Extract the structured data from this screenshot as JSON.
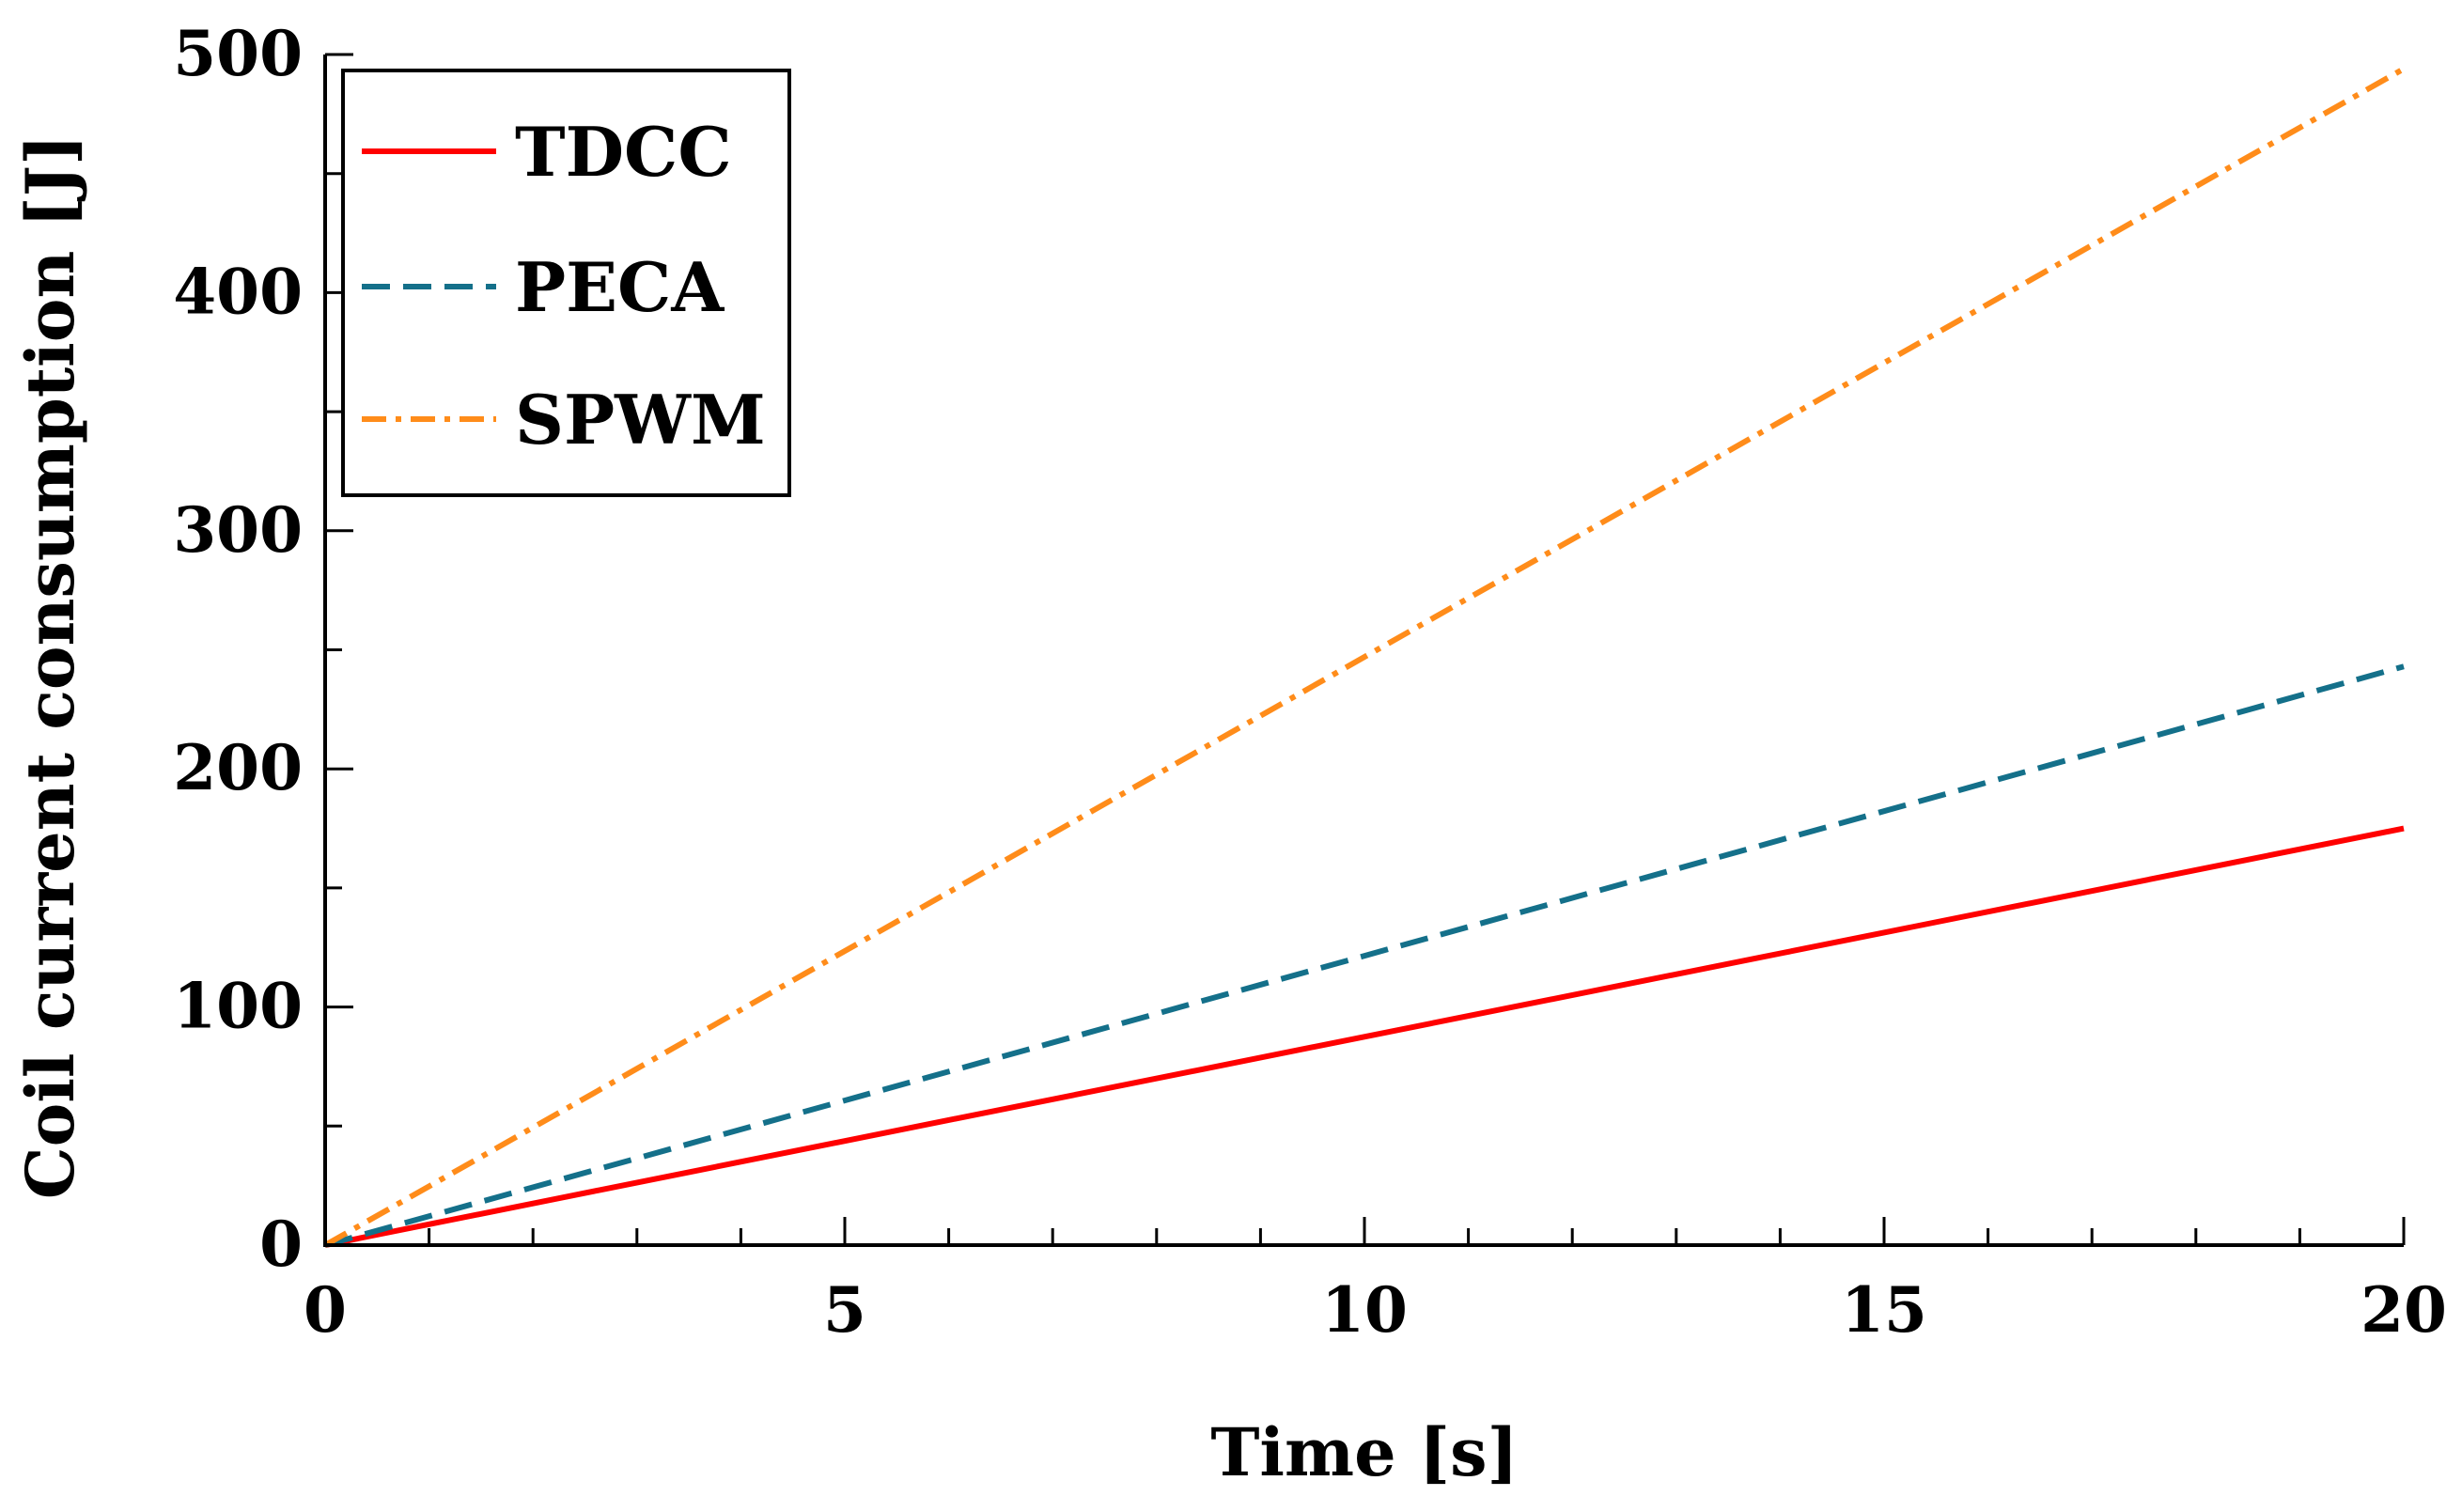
{
  "chart_data": {
    "type": "line",
    "title": "",
    "xlabel": "Time [s]",
    "ylabel": "Coil current consumption [J]",
    "xlim": [
      0,
      20
    ],
    "ylim": [
      0,
      500
    ],
    "x_ticks": [
      0,
      5,
      10,
      15,
      20
    ],
    "x_tick_labels": [
      "0",
      "5",
      "10",
      "15",
      "20"
    ],
    "x_minor_step": 1,
    "y_ticks": [
      0,
      100,
      200,
      300,
      400,
      500
    ],
    "y_tick_labels": [
      "0",
      "100",
      "200",
      "300",
      "400",
      "500"
    ],
    "y_minor_step": 50,
    "grid": false,
    "legend_position": "top-left",
    "series": [
      {
        "name": "TDCC",
        "x": [
          0,
          20
        ],
        "values": [
          0,
          175
        ],
        "color": "#ff0000",
        "style": "solid"
      },
      {
        "name": "PECA",
        "x": [
          0,
          20
        ],
        "values": [
          0,
          243
        ],
        "color": "#14708a",
        "style": "dashed"
      },
      {
        "name": "SPWM",
        "x": [
          0,
          20
        ],
        "values": [
          0,
          494
        ],
        "color": "#ff8c1a",
        "style": "dashdot"
      }
    ]
  }
}
